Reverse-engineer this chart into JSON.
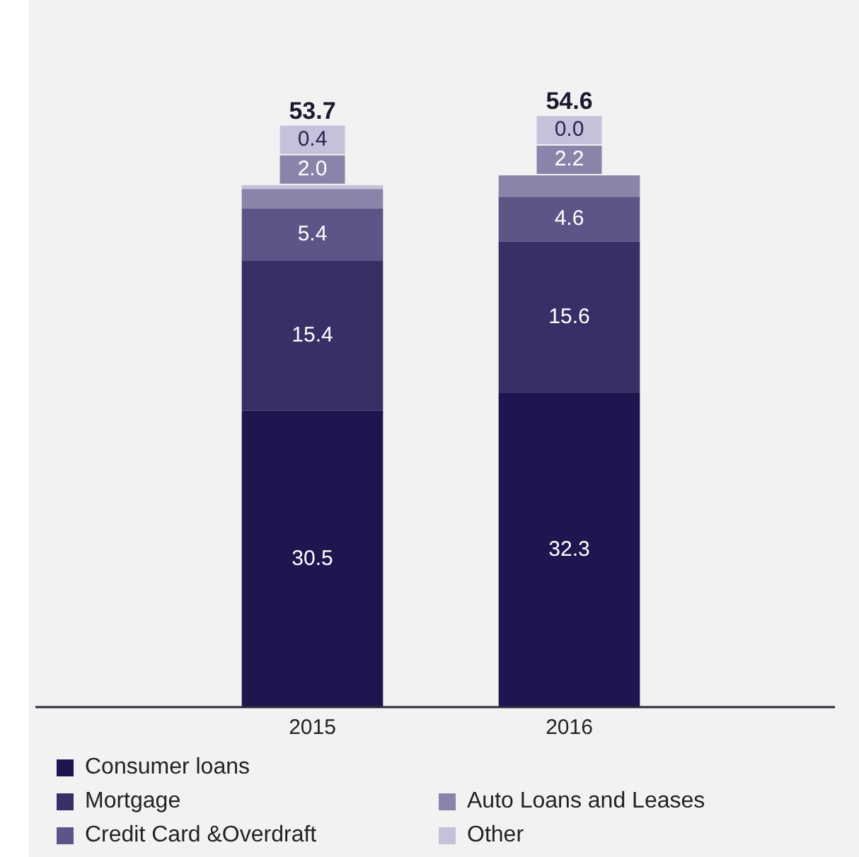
{
  "chart_data": {
    "type": "bar",
    "stacked": true,
    "categories": [
      "2015",
      "2016"
    ],
    "series": [
      {
        "name": "Consumer loans",
        "color": "#1f1650",
        "values": [
          30.5,
          32.3
        ],
        "value_labels": [
          "30.5",
          "32.3"
        ]
      },
      {
        "name": "Mortgage",
        "color": "#3a2e66",
        "values": [
          15.4,
          15.6
        ],
        "value_labels": [
          "15.4",
          "15.6"
        ]
      },
      {
        "name": "Credit Card &Overdraft",
        "color": "#5e5487",
        "values": [
          5.4,
          4.6
        ],
        "value_labels": [
          "5.4",
          "4.6"
        ]
      },
      {
        "name": "Auto Loans and Leases",
        "color": "#8b84aa",
        "values": [
          2.0,
          2.2
        ],
        "value_labels": [
          "2.0",
          "2.2"
        ]
      },
      {
        "name": "Other",
        "color": "#c6c1da",
        "values": [
          0.4,
          0.0
        ],
        "value_labels": [
          "0.4",
          "0.0"
        ]
      }
    ],
    "totals": [
      "53.7",
      "54.6"
    ],
    "legend": "bottom",
    "grid": false,
    "tick_labels": "x"
  }
}
